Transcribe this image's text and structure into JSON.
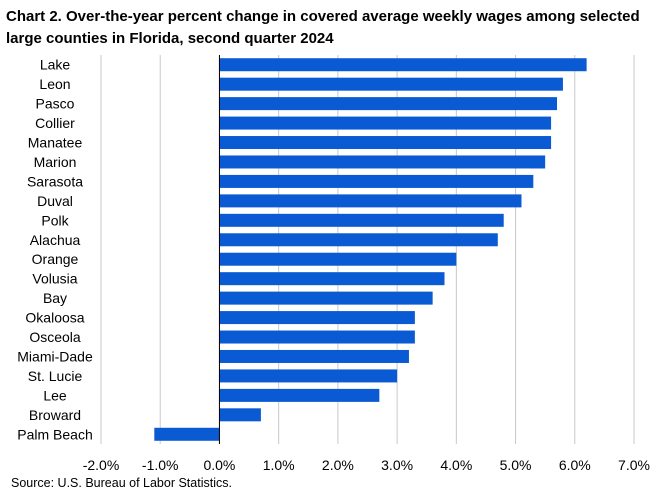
{
  "title": "Chart 2. Over-the-year percent change in covered average weekly wages among selected large counties in Florida, second quarter 2024",
  "source": "Source: U.S. Bureau of Labor Statistics.",
  "colors": {
    "bar": "#0a5ad4",
    "axis": "#000000",
    "grid": "#c8c8c8"
  },
  "chart_data": {
    "type": "bar",
    "orientation": "horizontal",
    "categories": [
      "Lake",
      "Leon",
      "Pasco",
      "Collier",
      "Manatee",
      "Marion",
      "Sarasota",
      "Duval",
      "Polk",
      "Alachua",
      "Orange",
      "Volusia",
      "Bay",
      "Okaloosa",
      "Osceola",
      "Miami-Dade",
      "St. Lucie",
      "Lee",
      "Broward",
      "Palm Beach"
    ],
    "values": [
      6.2,
      5.8,
      5.7,
      5.6,
      5.6,
      5.5,
      5.3,
      5.1,
      4.8,
      4.7,
      4.0,
      3.8,
      3.6,
      3.3,
      3.3,
      3.2,
      3.0,
      2.7,
      0.7,
      -1.1
    ],
    "xlim": [
      -2.0,
      7.0
    ],
    "xticks": [
      -2.0,
      -1.0,
      0.0,
      1.0,
      2.0,
      3.0,
      4.0,
      5.0,
      6.0,
      7.0
    ],
    "xtick_labels": [
      "-2.0%",
      "-1.0%",
      "0.0%",
      "1.0%",
      "2.0%",
      "3.0%",
      "4.0%",
      "5.0%",
      "6.0%",
      "7.0%"
    ],
    "grid": "vertical",
    "legend": "none"
  }
}
